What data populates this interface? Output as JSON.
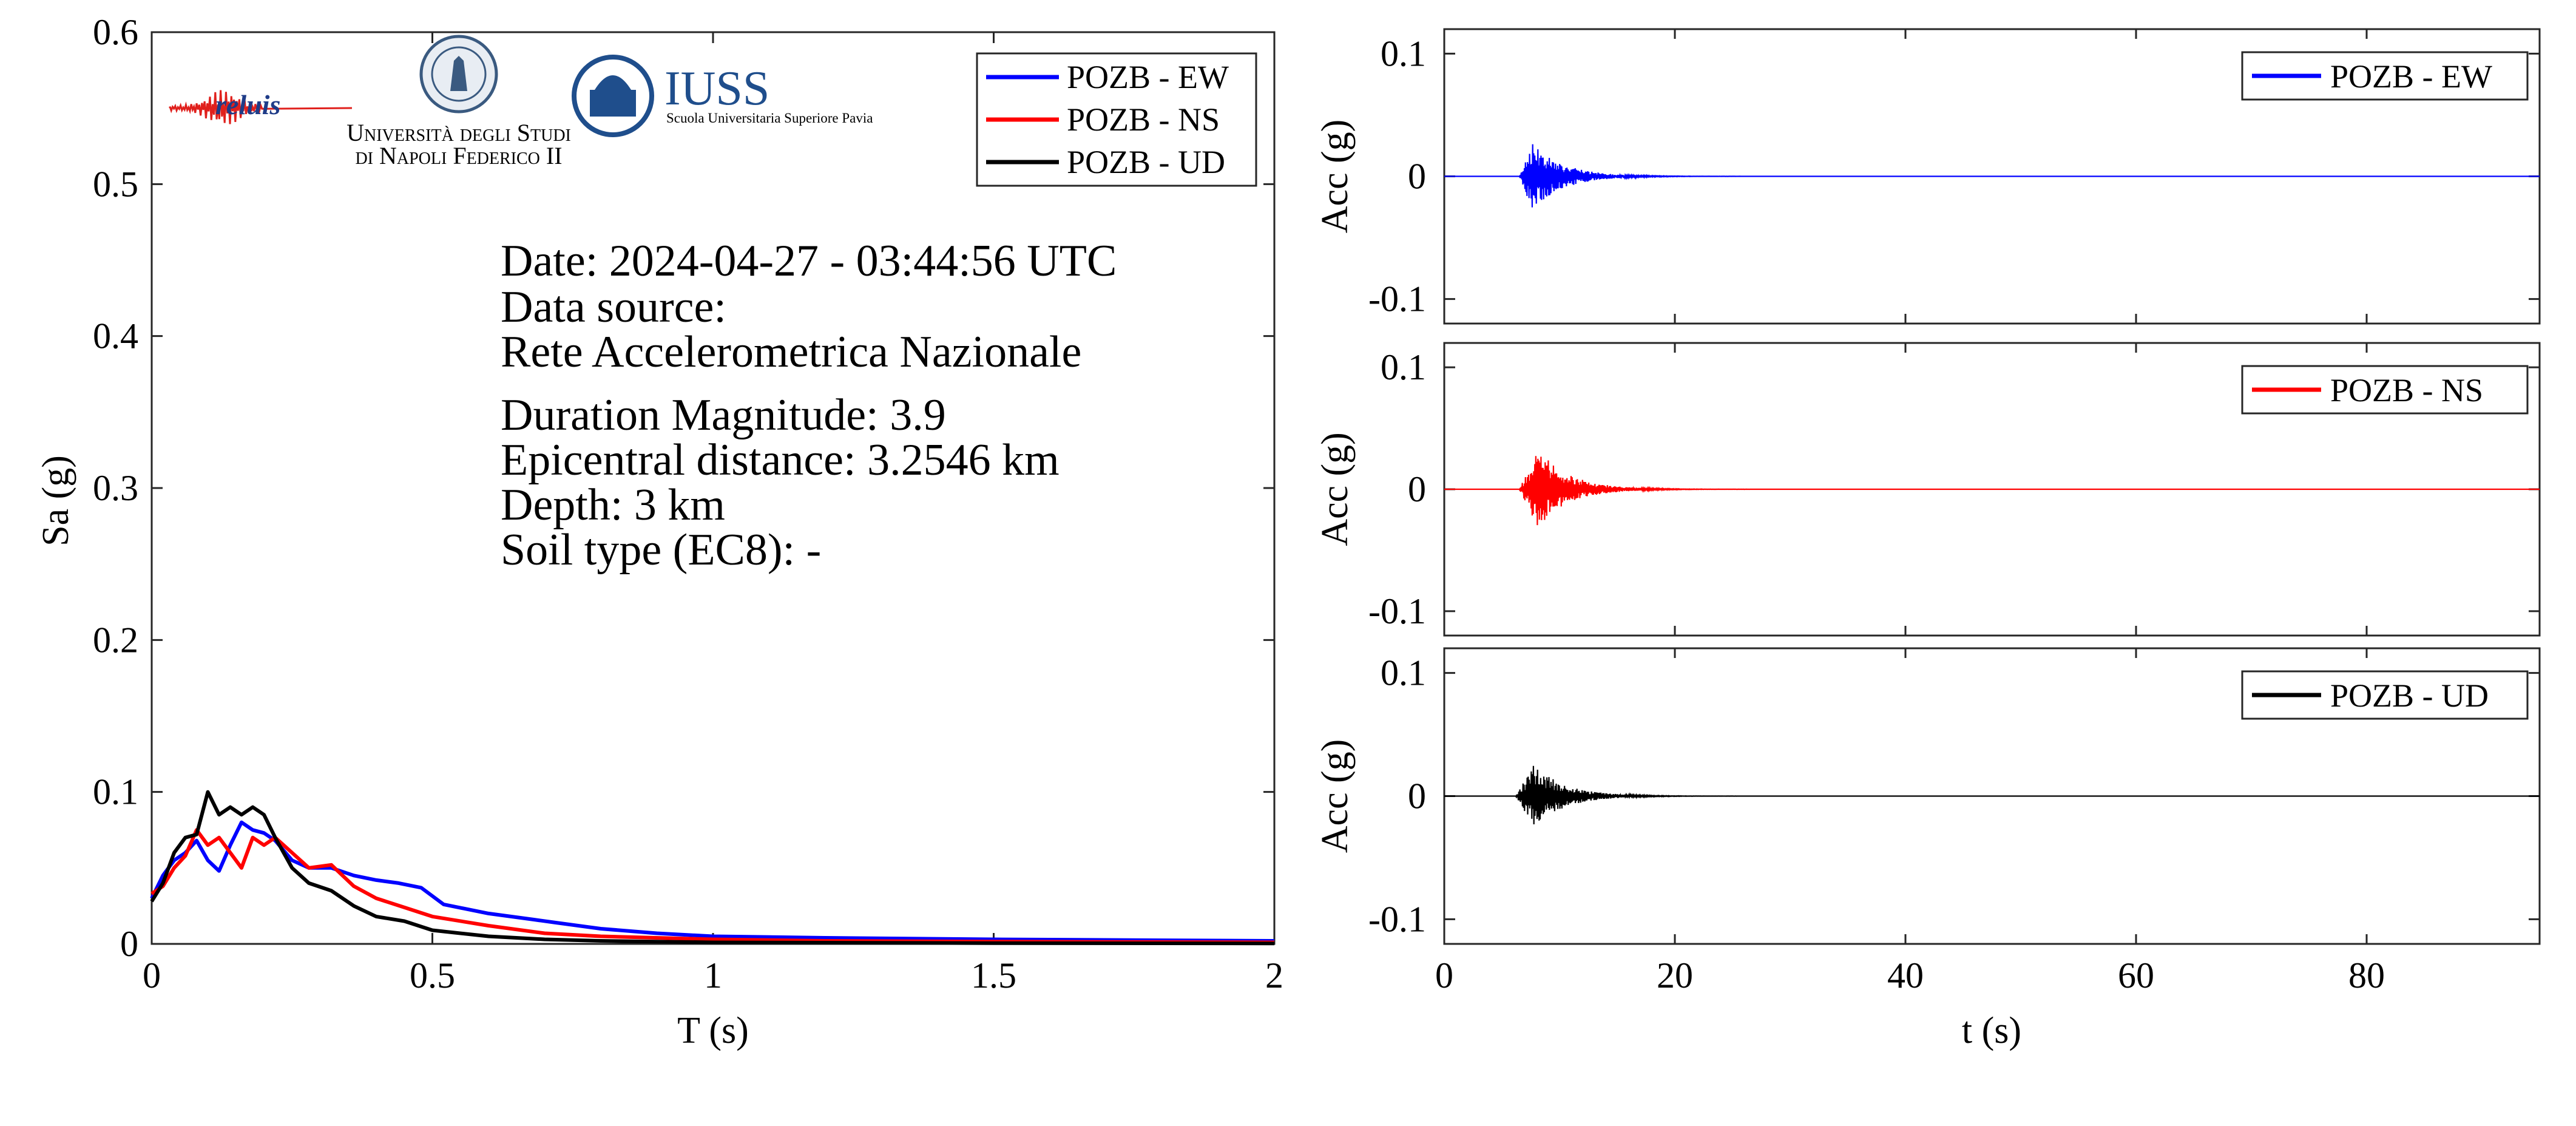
{
  "colors": {
    "ew": "#0000ff",
    "ns": "#ff0000",
    "ud": "#000000",
    "axis": "#262626",
    "iuss_blue": "#1f4e8c"
  },
  "logos": {
    "reluis": "reluis",
    "unina_line1": "Università degli Studi",
    "unina_line2": "di Napoli Federico II",
    "iuss_title": "IUSS",
    "iuss_sub": "Scuola Universitaria Superiore Pavia"
  },
  "info": {
    "date": "Date: 2024-04-27 - 03:44:56 UTC",
    "source_label": "Data source:",
    "source": "Rete Accelerometrica Nazionale",
    "magnitude": "Duration Magnitude: 3.9",
    "distance": "Epicentral distance: 3.2546 km",
    "depth": "Depth: 3 km",
    "soil": "Soil type (EC8): -"
  },
  "chart_data": [
    {
      "type": "line",
      "title": "",
      "xlabel": "T (s)",
      "ylabel": "Sa (g)",
      "xlim": [
        0,
        2
      ],
      "ylim": [
        0,
        0.6
      ],
      "xticks": [
        0,
        0.5,
        1,
        1.5,
        2
      ],
      "xtick_labels": [
        "0",
        "0.5",
        "1",
        "1.5",
        "2"
      ],
      "yticks": [
        0,
        0.1,
        0.2,
        0.3,
        0.4,
        0.5,
        0.6
      ],
      "ytick_labels": [
        "0",
        "0.1",
        "0.2",
        "0.3",
        "0.4",
        "0.5",
        "0.6"
      ],
      "legend_position": "top-right",
      "series": [
        {
          "name": "POZB - EW",
          "color": "#0000ff",
          "x": [
            0,
            0.02,
            0.04,
            0.06,
            0.08,
            0.1,
            0.12,
            0.14,
            0.16,
            0.18,
            0.2,
            0.22,
            0.25,
            0.28,
            0.32,
            0.36,
            0.4,
            0.44,
            0.48,
            0.52,
            0.6,
            0.68,
            0.72,
            0.8,
            0.9,
            1.0,
            1.2,
            1.5,
            2.0
          ],
          "y": [
            0.03,
            0.045,
            0.055,
            0.06,
            0.068,
            0.055,
            0.048,
            0.065,
            0.08,
            0.075,
            0.073,
            0.068,
            0.055,
            0.05,
            0.05,
            0.045,
            0.042,
            0.04,
            0.037,
            0.026,
            0.02,
            0.016,
            0.014,
            0.01,
            0.007,
            0.005,
            0.004,
            0.003,
            0.002
          ]
        },
        {
          "name": "POZB - NS",
          "color": "#ff0000",
          "x": [
            0,
            0.02,
            0.04,
            0.06,
            0.08,
            0.1,
            0.12,
            0.14,
            0.16,
            0.18,
            0.2,
            0.22,
            0.25,
            0.28,
            0.32,
            0.36,
            0.4,
            0.45,
            0.5,
            0.6,
            0.7,
            0.8,
            0.9,
            1.0,
            1.2,
            1.5,
            2.0
          ],
          "y": [
            0.033,
            0.038,
            0.05,
            0.058,
            0.075,
            0.065,
            0.07,
            0.06,
            0.05,
            0.07,
            0.065,
            0.07,
            0.06,
            0.05,
            0.052,
            0.038,
            0.03,
            0.024,
            0.018,
            0.012,
            0.007,
            0.005,
            0.004,
            0.003,
            0.002,
            0.0015,
            0.001
          ]
        },
        {
          "name": "POZB - UD",
          "color": "#000000",
          "x": [
            0,
            0.02,
            0.04,
            0.06,
            0.08,
            0.1,
            0.12,
            0.14,
            0.16,
            0.18,
            0.2,
            0.22,
            0.25,
            0.28,
            0.32,
            0.36,
            0.4,
            0.45,
            0.5,
            0.6,
            0.7,
            0.8,
            0.9,
            1.0,
            1.5,
            2.0
          ],
          "y": [
            0.028,
            0.04,
            0.06,
            0.07,
            0.072,
            0.1,
            0.085,
            0.09,
            0.085,
            0.09,
            0.085,
            0.07,
            0.05,
            0.04,
            0.035,
            0.025,
            0.018,
            0.015,
            0.009,
            0.005,
            0.003,
            0.002,
            0.0015,
            0.001,
            0.0005,
            0.0003
          ]
        }
      ]
    },
    {
      "type": "line",
      "title": "",
      "xlabel": "",
      "ylabel": "Acc (g)",
      "xlim": [
        0,
        95
      ],
      "ylim": [
        -0.12,
        0.12
      ],
      "xticks": [
        0,
        20,
        40,
        60,
        80
      ],
      "yticks": [
        -0.1,
        0,
        0.1
      ],
      "ytick_labels": [
        "-0.1",
        "0",
        "0.1"
      ],
      "legend_position": "top-right",
      "series": [
        {
          "name": "POZB - EW",
          "color": "#0000ff",
          "t_start": 6.5,
          "peak_time": 7.6,
          "pga": 0.028,
          "duration": 25
        }
      ]
    },
    {
      "type": "line",
      "title": "",
      "xlabel": "",
      "ylabel": "Acc (g)",
      "xlim": [
        0,
        95
      ],
      "ylim": [
        -0.12,
        0.12
      ],
      "xticks": [
        0,
        20,
        40,
        60,
        80
      ],
      "yticks": [
        -0.1,
        0,
        0.1
      ],
      "ytick_labels": [
        "-0.1",
        "0",
        "0.1"
      ],
      "legend_position": "top-right",
      "series": [
        {
          "name": "POZB - NS",
          "color": "#ff0000",
          "t_start": 6.5,
          "peak_time": 8.2,
          "pga": 0.033,
          "duration": 25
        }
      ]
    },
    {
      "type": "line",
      "title": "",
      "xlabel": "t (s)",
      "ylabel": "Acc (g)",
      "xlim": [
        0,
        95
      ],
      "ylim": [
        -0.12,
        0.12
      ],
      "xticks": [
        0,
        20,
        40,
        60,
        80
      ],
      "xtick_labels": [
        "0",
        "20",
        "40",
        "60",
        "80"
      ],
      "yticks": [
        -0.1,
        0,
        0.1
      ],
      "ytick_labels": [
        "-0.1",
        "0",
        "0.1"
      ],
      "legend_position": "top-right",
      "series": [
        {
          "name": "POZB - UD",
          "color": "#000000",
          "t_start": 6.2,
          "peak_time": 7.8,
          "pga": 0.026,
          "duration": 22
        }
      ]
    }
  ]
}
